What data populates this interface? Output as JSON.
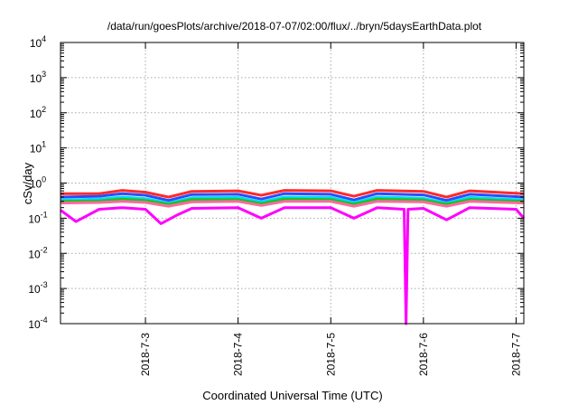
{
  "chart_data": {
    "type": "line",
    "title": "/data/run/goesPlots/archive/2018-07-07/02:00/flux/../bryn/5daysEarthData.plot",
    "xlabel": "Coordinated Universal Time (UTC)",
    "ylabel": "cSv/day",
    "yscale": "log",
    "ylim": [
      "1e-4",
      "1e4"
    ],
    "xlim": [
      "2018-07-02T02:00",
      "2018-07-07T02:00"
    ],
    "x_ticks": [
      "2018-7-3",
      "2018-7-4",
      "2018-7-5",
      "2018-7-6",
      "2018-7-7"
    ],
    "y_ticks": [
      {
        "base": "10",
        "exp": "-4"
      },
      {
        "base": "10",
        "exp": "-3"
      },
      {
        "base": "10",
        "exp": "-2"
      },
      {
        "base": "10",
        "exp": "-1"
      },
      {
        "base": "10",
        "exp": "0"
      },
      {
        "base": "10",
        "exp": "1"
      },
      {
        "base": "10",
        "exp": "2"
      },
      {
        "base": "10",
        "exp": "3"
      },
      {
        "base": "10",
        "exp": "4"
      }
    ],
    "grid": true,
    "legend": "none",
    "series": [
      {
        "color": "#ff2a2a",
        "values": [
          {
            "x": "2018-07-02T02:00",
            "y": 0.5
          },
          {
            "x": "2018-07-02T12:00",
            "y": 0.5
          },
          {
            "x": "2018-07-02T18:00",
            "y": 0.62
          },
          {
            "x": "2018-07-03T00:00",
            "y": 0.55
          },
          {
            "x": "2018-07-03T06:00",
            "y": 0.4
          },
          {
            "x": "2018-07-03T12:00",
            "y": 0.58
          },
          {
            "x": "2018-07-04T00:00",
            "y": 0.6
          },
          {
            "x": "2018-07-04T06:00",
            "y": 0.45
          },
          {
            "x": "2018-07-04T12:00",
            "y": 0.62
          },
          {
            "x": "2018-07-05T00:00",
            "y": 0.6
          },
          {
            "x": "2018-07-05T06:00",
            "y": 0.42
          },
          {
            "x": "2018-07-05T12:00",
            "y": 0.62
          },
          {
            "x": "2018-07-06T00:00",
            "y": 0.58
          },
          {
            "x": "2018-07-06T06:00",
            "y": 0.4
          },
          {
            "x": "2018-07-06T12:00",
            "y": 0.6
          },
          {
            "x": "2018-07-07T02:00",
            "y": 0.5
          }
        ]
      },
      {
        "color": "#2a4cff",
        "values": [
          {
            "x": "2018-07-02T02:00",
            "y": 0.4
          },
          {
            "x": "2018-07-02T12:00",
            "y": 0.42
          },
          {
            "x": "2018-07-02T18:00",
            "y": 0.5
          },
          {
            "x": "2018-07-03T00:00",
            "y": 0.45
          },
          {
            "x": "2018-07-03T06:00",
            "y": 0.32
          },
          {
            "x": "2018-07-03T12:00",
            "y": 0.47
          },
          {
            "x": "2018-07-04T00:00",
            "y": 0.48
          },
          {
            "x": "2018-07-04T06:00",
            "y": 0.35
          },
          {
            "x": "2018-07-04T12:00",
            "y": 0.5
          },
          {
            "x": "2018-07-05T00:00",
            "y": 0.48
          },
          {
            "x": "2018-07-05T06:00",
            "y": 0.33
          },
          {
            "x": "2018-07-05T12:00",
            "y": 0.5
          },
          {
            "x": "2018-07-06T00:00",
            "y": 0.46
          },
          {
            "x": "2018-07-06T06:00",
            "y": 0.32
          },
          {
            "x": "2018-07-06T12:00",
            "y": 0.48
          },
          {
            "x": "2018-07-07T02:00",
            "y": 0.4
          }
        ]
      },
      {
        "color": "#00d8ff",
        "values": [
          {
            "x": "2018-07-02T02:00",
            "y": 0.33
          },
          {
            "x": "2018-07-02T12:00",
            "y": 0.35
          },
          {
            "x": "2018-07-02T18:00",
            "y": 0.4
          },
          {
            "x": "2018-07-03T00:00",
            "y": 0.36
          },
          {
            "x": "2018-07-03T06:00",
            "y": 0.27
          },
          {
            "x": "2018-07-03T12:00",
            "y": 0.38
          },
          {
            "x": "2018-07-04T00:00",
            "y": 0.39
          },
          {
            "x": "2018-07-04T06:00",
            "y": 0.29
          },
          {
            "x": "2018-07-04T12:00",
            "y": 0.4
          },
          {
            "x": "2018-07-05T00:00",
            "y": 0.39
          },
          {
            "x": "2018-07-05T06:00",
            "y": 0.28
          },
          {
            "x": "2018-07-05T12:00",
            "y": 0.4
          },
          {
            "x": "2018-07-06T00:00",
            "y": 0.37
          },
          {
            "x": "2018-07-06T06:00",
            "y": 0.27
          },
          {
            "x": "2018-07-06T12:00",
            "y": 0.39
          },
          {
            "x": "2018-07-07T02:00",
            "y": 0.33
          }
        ]
      },
      {
        "color": "#22c022",
        "values": [
          {
            "x": "2018-07-02T02:00",
            "y": 0.3
          },
          {
            "x": "2018-07-02T12:00",
            "y": 0.31
          },
          {
            "x": "2018-07-02T18:00",
            "y": 0.35
          },
          {
            "x": "2018-07-03T00:00",
            "y": 0.32
          },
          {
            "x": "2018-07-03T06:00",
            "y": 0.25
          },
          {
            "x": "2018-07-03T12:00",
            "y": 0.34
          },
          {
            "x": "2018-07-04T00:00",
            "y": 0.34
          },
          {
            "x": "2018-07-04T06:00",
            "y": 0.26
          },
          {
            "x": "2018-07-04T12:00",
            "y": 0.35
          },
          {
            "x": "2018-07-05T00:00",
            "y": 0.34
          },
          {
            "x": "2018-07-05T06:00",
            "y": 0.25
          },
          {
            "x": "2018-07-05T12:00",
            "y": 0.35
          },
          {
            "x": "2018-07-06T00:00",
            "y": 0.33
          },
          {
            "x": "2018-07-06T06:00",
            "y": 0.25
          },
          {
            "x": "2018-07-06T12:00",
            "y": 0.34
          },
          {
            "x": "2018-07-07T02:00",
            "y": 0.3
          }
        ]
      },
      {
        "color": "#ff6aa0",
        "values": [
          {
            "x": "2018-07-02T02:00",
            "y": 0.27
          },
          {
            "x": "2018-07-02T12:00",
            "y": 0.28
          },
          {
            "x": "2018-07-02T18:00",
            "y": 0.3
          },
          {
            "x": "2018-07-03T00:00",
            "y": 0.28
          },
          {
            "x": "2018-07-03T06:00",
            "y": 0.22
          },
          {
            "x": "2018-07-03T12:00",
            "y": 0.29
          },
          {
            "x": "2018-07-04T00:00",
            "y": 0.3
          },
          {
            "x": "2018-07-04T06:00",
            "y": 0.23
          },
          {
            "x": "2018-07-04T12:00",
            "y": 0.3
          },
          {
            "x": "2018-07-05T00:00",
            "y": 0.3
          },
          {
            "x": "2018-07-05T06:00",
            "y": 0.22
          },
          {
            "x": "2018-07-05T12:00",
            "y": 0.3
          },
          {
            "x": "2018-07-06T00:00",
            "y": 0.29
          },
          {
            "x": "2018-07-06T06:00",
            "y": 0.22
          },
          {
            "x": "2018-07-06T12:00",
            "y": 0.3
          },
          {
            "x": "2018-07-07T02:00",
            "y": 0.27
          }
        ]
      },
      {
        "color": "#ff00ff",
        "values": [
          {
            "x": "2018-07-02T02:00",
            "y": 0.17
          },
          {
            "x": "2018-07-02T06:00",
            "y": 0.08
          },
          {
            "x": "2018-07-02T12:00",
            "y": 0.18
          },
          {
            "x": "2018-07-02T18:00",
            "y": 0.2
          },
          {
            "x": "2018-07-03T00:00",
            "y": 0.18
          },
          {
            "x": "2018-07-03T04:00",
            "y": 0.07
          },
          {
            "x": "2018-07-03T08:00",
            "y": 0.12
          },
          {
            "x": "2018-07-03T12:00",
            "y": 0.19
          },
          {
            "x": "2018-07-04T00:00",
            "y": 0.2
          },
          {
            "x": "2018-07-04T06:00",
            "y": 0.1
          },
          {
            "x": "2018-07-04T12:00",
            "y": 0.2
          },
          {
            "x": "2018-07-05T00:00",
            "y": 0.2
          },
          {
            "x": "2018-07-05T06:00",
            "y": 0.1
          },
          {
            "x": "2018-07-05T12:00",
            "y": 0.2
          },
          {
            "x": "2018-07-05T19:00",
            "y": 0.18
          },
          {
            "x": "2018-07-05T19:30",
            "y": 0.0001
          },
          {
            "x": "2018-07-05T20:00",
            "y": 0.18
          },
          {
            "x": "2018-07-06T00:00",
            "y": 0.19
          },
          {
            "x": "2018-07-06T06:00",
            "y": 0.09
          },
          {
            "x": "2018-07-06T12:00",
            "y": 0.2
          },
          {
            "x": "2018-07-07T00:00",
            "y": 0.18
          },
          {
            "x": "2018-07-07T02:00",
            "y": 0.1
          }
        ]
      }
    ]
  }
}
